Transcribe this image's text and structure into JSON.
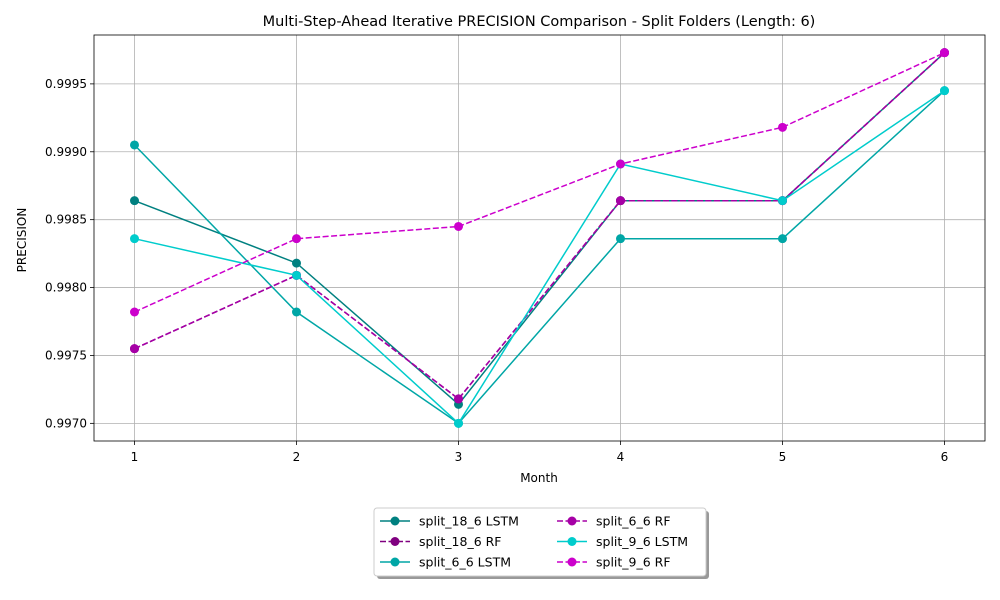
{
  "chart_data": {
    "type": "line",
    "title": "Multi-Step-Ahead Iterative PRECISION Comparison - Split Folders (Length: 6)",
    "xlabel": "Month",
    "ylabel": "PRECISION",
    "x": [
      1,
      2,
      3,
      4,
      5,
      6
    ],
    "xlim": [
      0.75,
      6.25
    ],
    "ylim": [
      0.99687,
      0.99986
    ],
    "y_ticks": [
      "0.9970",
      "0.9975",
      "0.9980",
      "0.9985",
      "0.9990",
      "0.9995"
    ],
    "grid": true,
    "legend_placement": "bottom-center, below axes, 2 columns",
    "series": [
      {
        "name": "split_18_6 LSTM",
        "color": "#008080",
        "dash": "solid",
        "values": [
          0.99864,
          0.99818,
          0.99714,
          0.99864,
          0.99864,
          0.99973
        ]
      },
      {
        "name": "split_18_6 RF",
        "color": "#800080",
        "dash": "dashed",
        "values": [
          0.99755,
          0.99809,
          0.99718,
          0.99864,
          0.99864,
          0.99973
        ]
      },
      {
        "name": "split_6_6 LSTM",
        "color": "#00a6a6",
        "dash": "solid",
        "values": [
          0.99905,
          0.99782,
          0.997,
          0.99836,
          0.99836,
          0.99945
        ]
      },
      {
        "name": "split_6_6 RF",
        "color": "#a600a6",
        "dash": "dashed",
        "values": [
          0.99755,
          0.99809,
          0.99718,
          0.99864,
          0.99864,
          0.99973
        ]
      },
      {
        "name": "split_9_6 LSTM",
        "color": "#00cccc",
        "dash": "solid",
        "values": [
          0.99836,
          0.99809,
          0.997,
          0.99891,
          0.99864,
          0.99945
        ]
      },
      {
        "name": "split_9_6 RF",
        "color": "#cc00cc",
        "dash": "dashed",
        "values": [
          0.99782,
          0.99836,
          0.99845,
          0.99891,
          0.99918,
          0.99973
        ]
      }
    ]
  }
}
